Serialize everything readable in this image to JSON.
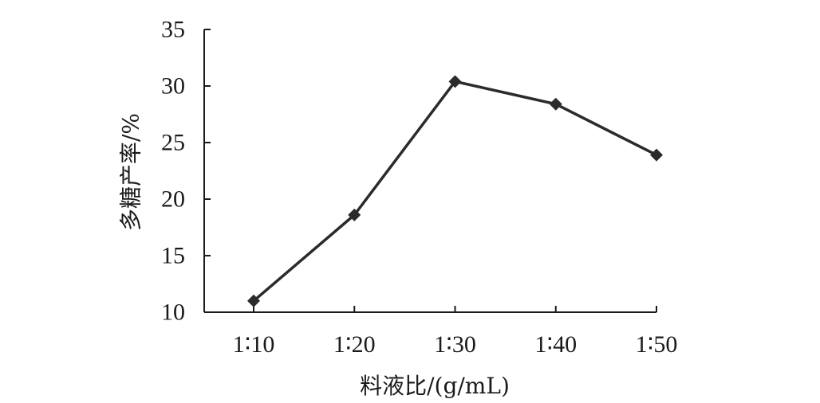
{
  "chart_data": {
    "type": "line",
    "title": "",
    "xlabel": "料液比/(g/mL)",
    "ylabel": "多糖产率/%",
    "categories": [
      "1∶10",
      "1∶20",
      "1∶30",
      "1∶40",
      "1∶50"
    ],
    "series": [
      {
        "values": [
          11.0,
          18.6,
          30.4,
          28.4,
          23.9
        ],
        "color": "#2b2b2b",
        "marker": "diamond"
      }
    ],
    "ylim": [
      10,
      35
    ],
    "yticks": [
      10,
      15,
      20,
      25,
      30,
      35
    ],
    "grid": false,
    "legend": "none"
  }
}
